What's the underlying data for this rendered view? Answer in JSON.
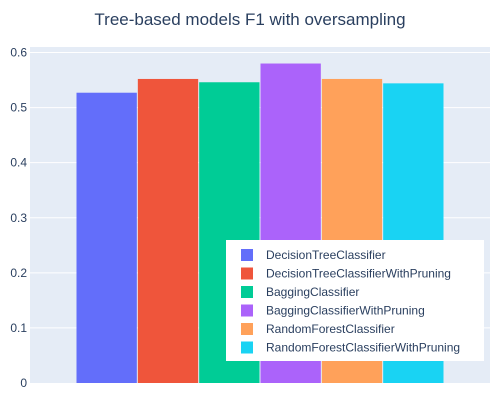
{
  "chart_data": {
    "type": "bar",
    "title": "Tree-based models F1 with oversampling",
    "xlabel": "",
    "ylabel": "",
    "ylim": [
      0,
      0.61
    ],
    "yticks": [
      0,
      0.1,
      0.2,
      0.3,
      0.4,
      0.5,
      0.6
    ],
    "ytick_labels": [
      "0",
      "0.1",
      "0.2",
      "0.3",
      "0.4",
      "0.5",
      "0.6"
    ],
    "grid": true,
    "legend_position": "bottom-right",
    "series": [
      {
        "name": "DecisionTreeClassifier",
        "value": 0.527,
        "color": "#636efa"
      },
      {
        "name": "DecisionTreeClassifierWithPruning",
        "value": 0.552,
        "color": "#ef553b"
      },
      {
        "name": "BaggingClassifier",
        "value": 0.546,
        "color": "#00cc96"
      },
      {
        "name": "BaggingClassifierWithPruning",
        "value": 0.58,
        "color": "#ab63fa"
      },
      {
        "name": "RandomForestClassifier",
        "value": 0.552,
        "color": "#ffa15a"
      },
      {
        "name": "RandomForestClassifierWithPruning",
        "value": 0.544,
        "color": "#19d3f3"
      }
    ]
  }
}
